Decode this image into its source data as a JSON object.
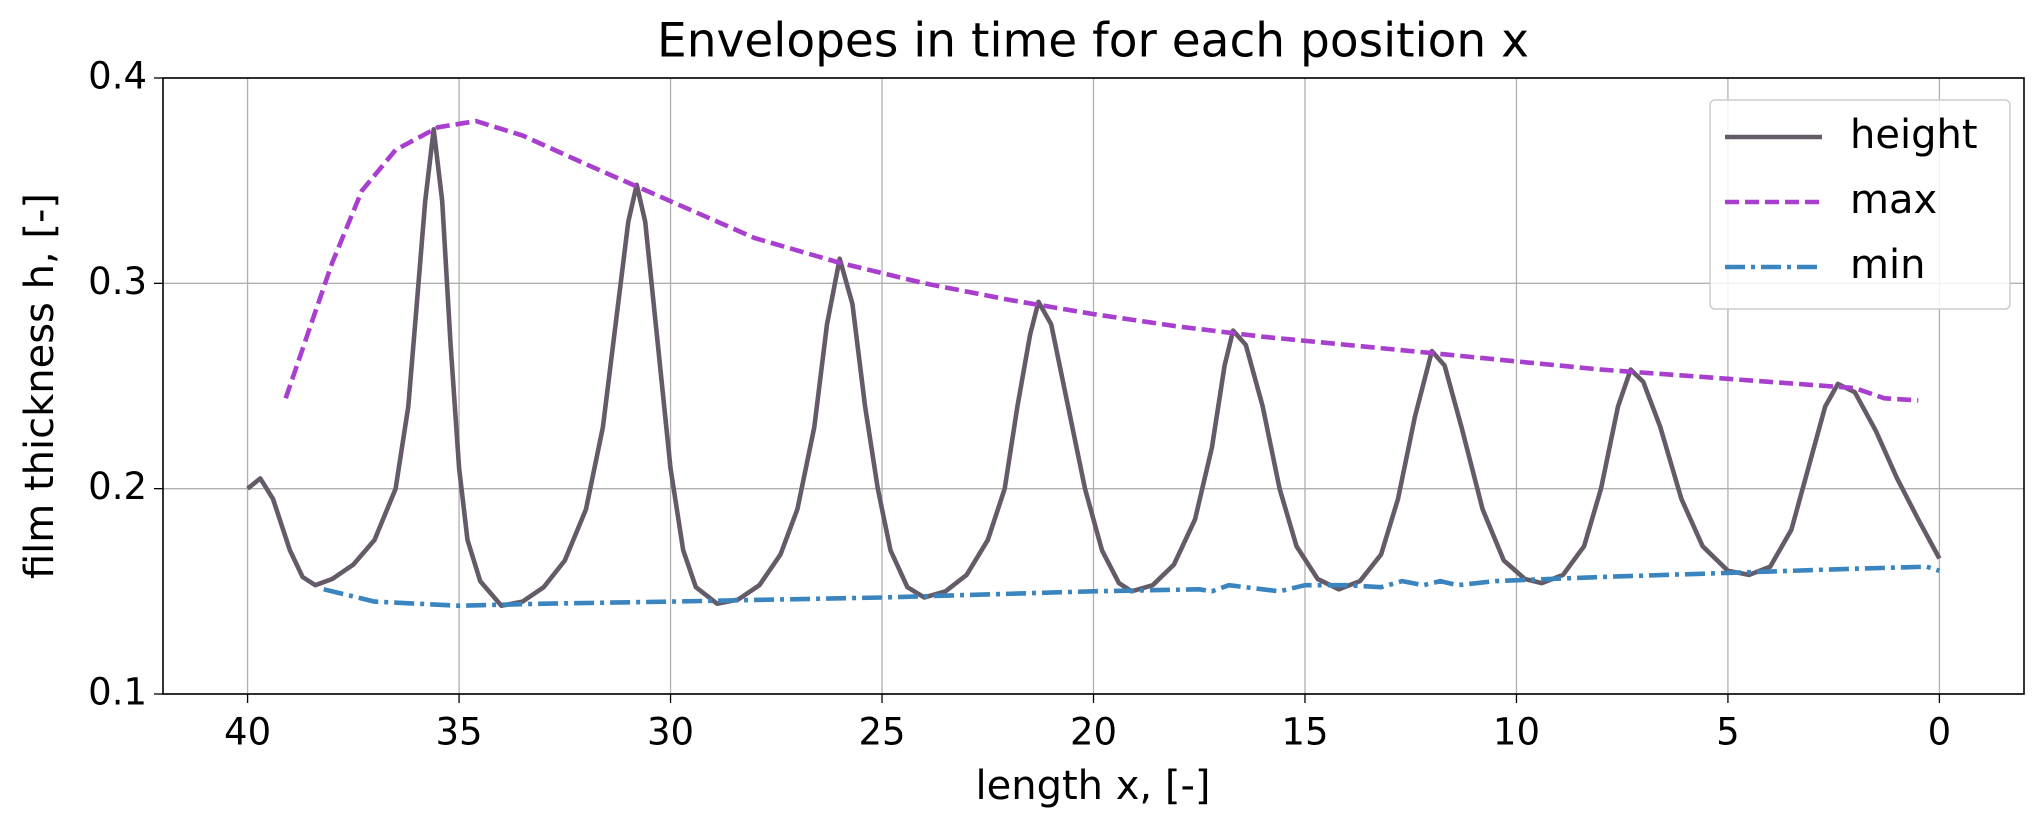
{
  "chart_data": {
    "type": "line",
    "title": "Envelopes in time for each position x",
    "xlabel": "length x, [-]",
    "ylabel": "film thickness h, [-]",
    "xlim": [
      42,
      -2
    ],
    "ylim": [
      0.1,
      0.4
    ],
    "xticks": [
      40,
      35,
      30,
      25,
      20,
      15,
      10,
      5,
      0
    ],
    "yticks": [
      0.1,
      0.2,
      0.3,
      0.4
    ],
    "grid": true,
    "legend": "upper right",
    "series": [
      {
        "name": "height",
        "color": "#655b68",
        "dash": "solid",
        "x": [
          40,
          39.7,
          39.4,
          39,
          38.7,
          38.4,
          38,
          37.5,
          37,
          36.5,
          36.2,
          36,
          35.8,
          35.6,
          35.4,
          35.2,
          35,
          34.8,
          34.5,
          34,
          33.5,
          33,
          32.5,
          32,
          31.6,
          31.3,
          31,
          30.8,
          30.6,
          30.3,
          30,
          29.7,
          29.4,
          28.9,
          28.4,
          27.9,
          27.4,
          27,
          26.6,
          26.3,
          26,
          25.7,
          25.4,
          25.1,
          24.8,
          24.4,
          24,
          23.5,
          23,
          22.5,
          22.1,
          21.8,
          21.5,
          21.3,
          21,
          20.6,
          20.2,
          19.8,
          19.4,
          19.1,
          18.6,
          18.1,
          17.6,
          17.2,
          16.9,
          16.7,
          16.4,
          16,
          15.6,
          15.2,
          14.7,
          14.2,
          13.7,
          13.2,
          12.8,
          12.4,
          12,
          11.7,
          11.3,
          10.8,
          10.3,
          9.8,
          9.4,
          8.9,
          8.4,
          8,
          7.6,
          7.3,
          7,
          6.6,
          6.1,
          5.6,
          5,
          4.5,
          4,
          3.5,
          3.1,
          2.7,
          2.4,
          2,
          1.5,
          1,
          0.5,
          0
        ],
        "values": [
          0.2,
          0.205,
          0.195,
          0.17,
          0.157,
          0.153,
          0.156,
          0.163,
          0.175,
          0.2,
          0.24,
          0.29,
          0.34,
          0.375,
          0.34,
          0.27,
          0.21,
          0.175,
          0.155,
          0.143,
          0.145,
          0.152,
          0.165,
          0.19,
          0.23,
          0.28,
          0.33,
          0.348,
          0.33,
          0.27,
          0.21,
          0.17,
          0.152,
          0.144,
          0.146,
          0.153,
          0.168,
          0.19,
          0.23,
          0.28,
          0.312,
          0.29,
          0.24,
          0.2,
          0.17,
          0.152,
          0.147,
          0.15,
          0.158,
          0.175,
          0.2,
          0.24,
          0.275,
          0.291,
          0.28,
          0.24,
          0.2,
          0.17,
          0.154,
          0.15,
          0.153,
          0.163,
          0.185,
          0.22,
          0.26,
          0.277,
          0.27,
          0.24,
          0.2,
          0.172,
          0.156,
          0.151,
          0.155,
          0.168,
          0.195,
          0.235,
          0.267,
          0.26,
          0.23,
          0.19,
          0.165,
          0.156,
          0.154,
          0.158,
          0.172,
          0.2,
          0.24,
          0.258,
          0.252,
          0.23,
          0.195,
          0.172,
          0.16,
          0.158,
          0.162,
          0.18,
          0.21,
          0.24,
          0.251,
          0.247,
          0.228,
          0.205,
          0.185,
          0.166
        ]
      },
      {
        "name": "max",
        "color": "#a83fcf",
        "dash": "dashed",
        "x": [
          39.1,
          38.5,
          38,
          37.3,
          36.5,
          35.5,
          34.6,
          33.5,
          32,
          30,
          28,
          26,
          24,
          22,
          20,
          18,
          16,
          14,
          12,
          10,
          8,
          6,
          4,
          2,
          1.3,
          0.5
        ],
        "values": [
          0.244,
          0.28,
          0.31,
          0.345,
          0.365,
          0.376,
          0.379,
          0.372,
          0.358,
          0.34,
          0.322,
          0.31,
          0.3,
          0.292,
          0.285,
          0.279,
          0.274,
          0.27,
          0.266,
          0.262,
          0.258,
          0.255,
          0.252,
          0.249,
          0.244,
          0.243
        ]
      },
      {
        "name": "min",
        "color": "#3a85bf",
        "dash": "dashdot",
        "x": [
          38.2,
          37,
          35,
          33,
          30,
          25,
          20,
          17.5,
          17.2,
          16.8,
          16,
          15.6,
          15,
          14,
          13.2,
          12.7,
          12.2,
          11.8,
          11.4,
          10.5,
          8,
          5,
          2,
          0.3,
          0
        ],
        "values": [
          0.151,
          0.145,
          0.143,
          0.144,
          0.145,
          0.147,
          0.15,
          0.151,
          0.15,
          0.153,
          0.151,
          0.15,
          0.153,
          0.153,
          0.152,
          0.155,
          0.153,
          0.155,
          0.153,
          0.155,
          0.157,
          0.159,
          0.161,
          0.162,
          0.16
        ]
      }
    ]
  }
}
